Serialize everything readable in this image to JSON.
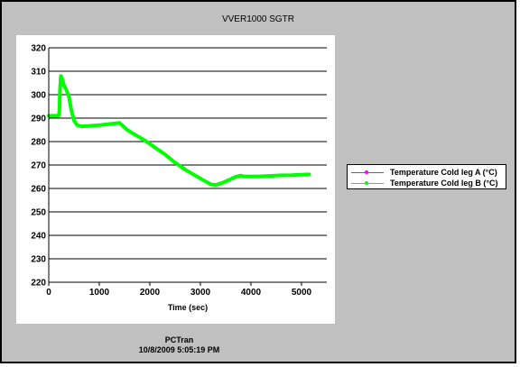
{
  "colors": {
    "window_background": "#c0c0c0",
    "plot_background": "#ffffff",
    "series_a": "#ff00ff",
    "series_b": "#00ff00",
    "grid": "#000000"
  },
  "footer": {
    "app_name": "PCTran",
    "timestamp": "10/8/2009 5:05:19 PM"
  },
  "chart_data": {
    "type": "line",
    "title": "VVER1000 SGTR",
    "xlabel": "Time (sec)",
    "ylabel": "",
    "xlim": [
      0,
      5500
    ],
    "ylim": [
      220,
      320
    ],
    "x_ticks": [
      0,
      1000,
      2000,
      3000,
      4000,
      5000
    ],
    "y_ticks": [
      220,
      230,
      240,
      250,
      260,
      270,
      280,
      290,
      300,
      310,
      320
    ],
    "grid": "horizontal",
    "legend_position": "right",
    "series": [
      {
        "name": "Temperature Cold leg A (°C)",
        "color": "#ff00ff",
        "x": [
          0,
          150,
          195,
          210,
          222,
          240,
          262,
          300,
          350,
          400,
          450,
          500,
          560,
          650,
          800,
          1000,
          1200,
          1400,
          1450,
          1550,
          1700,
          1900,
          2100,
          2300,
          2500,
          2700,
          2900,
          3100,
          3200,
          3300,
          3450,
          3600,
          3700,
          3800,
          3850,
          4000,
          4200,
          4400,
          4600,
          4800,
          5000,
          5150
        ],
        "values": [
          291,
          291,
          291,
          294,
          300,
          307.5,
          308,
          305,
          303,
          300,
          294,
          290,
          287,
          286.5,
          286.7,
          287,
          287.5,
          288,
          287,
          285,
          283,
          280.5,
          277.5,
          274.5,
          271,
          268,
          265.5,
          263,
          261.8,
          261.5,
          262.5,
          264,
          265,
          265.5,
          265.2,
          265.1,
          265.2,
          265.4,
          265.6,
          265.7,
          265.9,
          266
        ]
      },
      {
        "name": "Temperature Cold leg B (°C)",
        "color": "#00ff00",
        "x": [
          0,
          150,
          195,
          210,
          222,
          240,
          262,
          300,
          350,
          400,
          450,
          500,
          560,
          650,
          800,
          1000,
          1200,
          1400,
          1450,
          1550,
          1700,
          1900,
          2100,
          2300,
          2500,
          2700,
          2900,
          3100,
          3200,
          3300,
          3450,
          3600,
          3700,
          3800,
          3850,
          4000,
          4200,
          4400,
          4600,
          4800,
          5000,
          5150
        ],
        "values": [
          291,
          291,
          291,
          293,
          302,
          308,
          307,
          304,
          302,
          299,
          293,
          289,
          287,
          286.5,
          286.7,
          287,
          287.5,
          288,
          287,
          285,
          283,
          280.5,
          277.5,
          274.5,
          271,
          268,
          265.5,
          263,
          261.8,
          261.5,
          262.5,
          264,
          265,
          265.5,
          265.2,
          265.1,
          265.2,
          265.4,
          265.6,
          265.7,
          265.9,
          266
        ]
      }
    ]
  }
}
